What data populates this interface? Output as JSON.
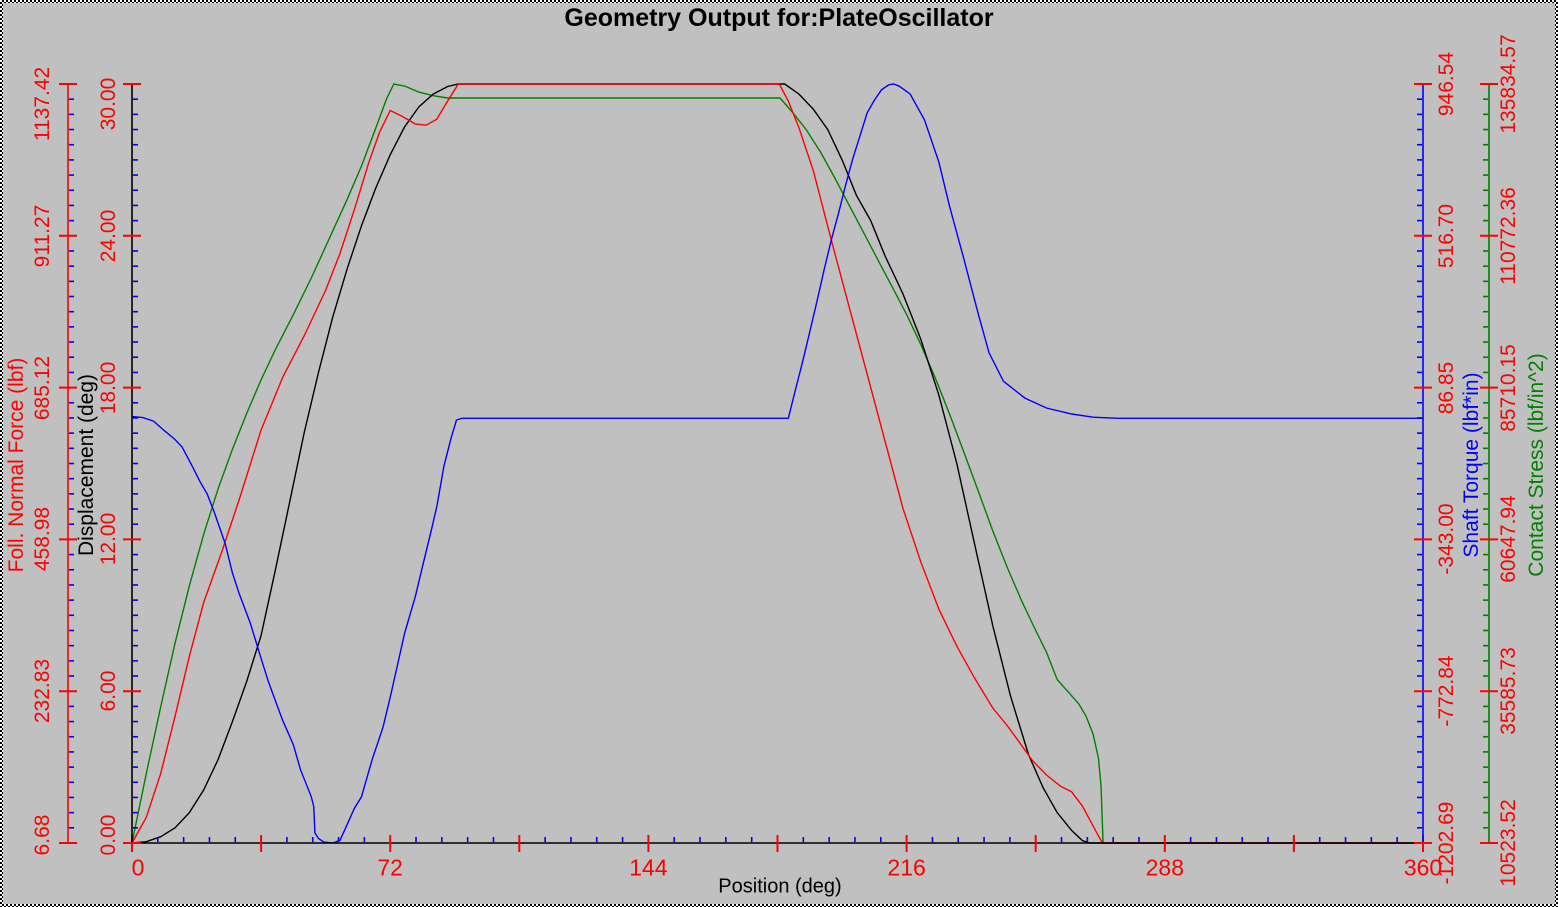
{
  "window": {
    "background_color": "#c0c0c0"
  },
  "chart_data": {
    "type": "line",
    "title": "Geometry Output for:PlateOscillator",
    "xlabel": "Position (deg)",
    "legend": "none",
    "grid": false,
    "x_axis": {
      "min": 0,
      "max": 360,
      "major_tick_step": 36,
      "minor_tick_step": 7.2,
      "labeled_ticks": [
        0,
        72,
        144,
        216,
        288,
        360
      ],
      "axis_color": "#000000",
      "major_tick_color": "#ff0000",
      "minor_tick_color": "#0000ff",
      "tick_label_color": "#ff0000"
    },
    "y_axes": [
      {
        "id": "force",
        "label": "Foll. Normal Force (lbf)",
        "color": "#ff0000",
        "side": "left",
        "min": 6.68,
        "max": 1137.42,
        "ticks": [
          6.68,
          232.83,
          458.98,
          685.12,
          911.27,
          1137.42
        ],
        "tick_labels": [
          "6.68",
          "232.83",
          "458.98",
          "685.12",
          "911.27",
          "1137.42"
        ],
        "tick_label_color": "#ff0000",
        "major_tick_color": "#ff0000",
        "minor_tick_color": "#0000ff"
      },
      {
        "id": "displacement",
        "label": "Displacement (deg)",
        "color": "#000000",
        "side": "left",
        "min": 0,
        "max": 30,
        "ticks": [
          0,
          6,
          12,
          18,
          24,
          30
        ],
        "tick_labels": [
          "0.00",
          "6.00",
          "12.00",
          "18.00",
          "24.00",
          "30.00"
        ],
        "tick_label_color": "#ff0000",
        "major_tick_color": "#ff0000",
        "minor_tick_color": "#0000ff"
      },
      {
        "id": "torque",
        "label": "Shaft Torque (lbf*in)",
        "color": "#0000ff",
        "side": "right",
        "min": -1202.69,
        "max": 946.54,
        "ticks": [
          -1202.69,
          -772.84,
          -343.0,
          86.85,
          516.7,
          946.54
        ],
        "tick_labels": [
          "-1202.69",
          "-772.84",
          "-343.00",
          "86.85",
          "516.70",
          "946.54"
        ],
        "tick_label_color": "#ff0000",
        "major_tick_color": "#ff0000",
        "minor_tick_color": "#0000ff"
      },
      {
        "id": "stress",
        "label": "Contact Stress (lbf/in^2)",
        "color": "#008000",
        "side": "right",
        "min": 10523.52,
        "max": 135834.57,
        "ticks": [
          10523.52,
          35585.73,
          60647.94,
          85710.15,
          110772.36,
          135834.57
        ],
        "tick_labels": [
          "10523.52",
          "35585.73",
          "60647.94",
          "85710.15",
          "110772.36",
          "135834.57"
        ],
        "tick_label_color": "#ff0000",
        "major_tick_color": "#ff0000",
        "minor_tick_color": "#008000"
      }
    ],
    "series": [
      {
        "name": "Contact Stress",
        "axis": "stress",
        "color": "#008000",
        "points": [
          [
            0,
            10524
          ],
          [
            4,
            22000
          ],
          [
            8,
            33000
          ],
          [
            12,
            43500
          ],
          [
            16,
            53000
          ],
          [
            20,
            61500
          ],
          [
            24,
            69000
          ],
          [
            28,
            75500
          ],
          [
            32,
            81500
          ],
          [
            36,
            87000
          ],
          [
            40,
            92000
          ],
          [
            45,
            97800
          ],
          [
            50,
            103800
          ],
          [
            55,
            110300
          ],
          [
            60,
            116800
          ],
          [
            64,
            122300
          ],
          [
            68,
            128600
          ],
          [
            71,
            133400
          ],
          [
            73,
            135835
          ],
          [
            76,
            135500
          ],
          [
            80,
            134500
          ],
          [
            84,
            133900
          ],
          [
            88,
            133530
          ],
          [
            180.7,
            133530
          ],
          [
            184,
            131300
          ],
          [
            188,
            128300
          ],
          [
            192,
            124600
          ],
          [
            196,
            120300
          ],
          [
            200,
            115800
          ],
          [
            204,
            111300
          ],
          [
            208,
            106800
          ],
          [
            212,
            102300
          ],
          [
            216,
            97800
          ],
          [
            220,
            92800
          ],
          [
            224,
            87300
          ],
          [
            228,
            81300
          ],
          [
            232,
            75000
          ],
          [
            236,
            68600
          ],
          [
            240,
            62100
          ],
          [
            244,
            56100
          ],
          [
            248,
            50600
          ],
          [
            252,
            45600
          ],
          [
            255,
            42000
          ],
          [
            258,
            37500
          ],
          [
            261,
            35500
          ],
          [
            264,
            33500
          ],
          [
            266,
            31500
          ],
          [
            268,
            28500
          ],
          [
            269.5,
            24500
          ],
          [
            270.2,
            20000
          ],
          [
            270.8,
            10524
          ],
          [
            360,
            10524
          ]
        ]
      },
      {
        "name": "Displacement",
        "axis": "displacement",
        "color": "#000000",
        "points": [
          [
            0,
            0
          ],
          [
            4,
            0.05
          ],
          [
            8,
            0.25
          ],
          [
            12,
            0.6
          ],
          [
            16,
            1.2
          ],
          [
            20,
            2.1
          ],
          [
            24,
            3.3
          ],
          [
            28,
            4.8
          ],
          [
            32,
            6.4
          ],
          [
            36,
            8.2
          ],
          [
            40,
            10.8
          ],
          [
            44,
            13.5
          ],
          [
            48,
            16.2
          ],
          [
            52,
            18.6
          ],
          [
            56,
            20.8
          ],
          [
            60,
            22.7
          ],
          [
            64,
            24.4
          ],
          [
            68,
            25.9
          ],
          [
            72,
            27.2
          ],
          [
            76,
            28.3
          ],
          [
            80,
            29.1
          ],
          [
            84,
            29.6
          ],
          [
            88,
            29.9
          ],
          [
            91,
            30
          ],
          [
            182,
            30
          ],
          [
            186,
            29.6
          ],
          [
            190,
            29.0
          ],
          [
            194,
            28.2
          ],
          [
            198,
            27.0
          ],
          [
            202,
            25.6
          ],
          [
            206,
            24.6
          ],
          [
            210,
            23.2
          ],
          [
            215,
            21.7
          ],
          [
            220,
            19.9
          ],
          [
            225,
            17.7
          ],
          [
            230,
            15.0
          ],
          [
            235,
            11.8
          ],
          [
            240,
            8.6
          ],
          [
            245,
            5.8
          ],
          [
            250,
            3.5
          ],
          [
            254,
            2.2
          ],
          [
            258,
            1.2
          ],
          [
            262,
            0.5
          ],
          [
            265,
            0.1
          ],
          [
            267,
            0
          ],
          [
            360,
            0
          ]
        ]
      },
      {
        "name": "Foll. Normal Force",
        "axis": "force",
        "color": "#ff0000",
        "points": [
          [
            0,
            6.68
          ],
          [
            4,
            45
          ],
          [
            8,
            110
          ],
          [
            12,
            195
          ],
          [
            16,
            285
          ],
          [
            20,
            365
          ],
          [
            25,
            440
          ],
          [
            30,
            520
          ],
          [
            36,
            622
          ],
          [
            42,
            700
          ],
          [
            48,
            762
          ],
          [
            54,
            830
          ],
          [
            58,
            885
          ],
          [
            62,
            950
          ],
          [
            66,
            1020
          ],
          [
            69,
            1065
          ],
          [
            72,
            1098
          ],
          [
            75,
            1090
          ],
          [
            79,
            1078
          ],
          [
            82,
            1076
          ],
          [
            85,
            1085
          ],
          [
            88,
            1112
          ],
          [
            91,
            1137.42
          ],
          [
            180.5,
            1137.42
          ],
          [
            183,
            1112
          ],
          [
            186,
            1072
          ],
          [
            190,
            1008
          ],
          [
            195,
            905
          ],
          [
            200,
            805
          ],
          [
            205,
            705
          ],
          [
            210,
            605
          ],
          [
            215,
            505
          ],
          [
            220,
            425
          ],
          [
            225,
            355
          ],
          [
            230,
            300
          ],
          [
            235,
            252
          ],
          [
            240,
            208
          ],
          [
            244,
            182
          ],
          [
            247,
            160
          ],
          [
            251,
            130
          ],
          [
            255,
            108
          ],
          [
            259,
            91
          ],
          [
            262,
            83
          ],
          [
            265,
            62
          ],
          [
            267,
            42
          ],
          [
            269,
            22
          ],
          [
            270.6,
            6.68
          ],
          [
            360,
            6.68
          ]
        ]
      },
      {
        "name": "Shaft Torque",
        "axis": "torque",
        "color": "#0000ff",
        "points": [
          [
            0,
            5
          ],
          [
            3,
            2
          ],
          [
            6,
            -8
          ],
          [
            9,
            -35
          ],
          [
            12,
            -60
          ],
          [
            14,
            -82
          ],
          [
            17,
            -140
          ],
          [
            19,
            -180
          ],
          [
            21,
            -215
          ],
          [
            23,
            -268
          ],
          [
            26,
            -355
          ],
          [
            28,
            -438
          ],
          [
            30,
            -500
          ],
          [
            33,
            -580
          ],
          [
            36,
            -680
          ],
          [
            38,
            -745
          ],
          [
            40,
            -800
          ],
          [
            42,
            -855
          ],
          [
            45,
            -925
          ],
          [
            47,
            -995
          ],
          [
            50,
            -1072
          ],
          [
            50.7,
            -1100
          ],
          [
            51,
            -1174
          ],
          [
            52,
            -1190
          ],
          [
            53.5,
            -1200
          ],
          [
            56,
            -1202.69
          ],
          [
            58,
            -1195
          ],
          [
            60,
            -1150
          ],
          [
            62,
            -1105
          ],
          [
            64,
            -1072
          ],
          [
            67,
            -965
          ],
          [
            70,
            -875
          ],
          [
            72,
            -790
          ],
          [
            74,
            -700
          ],
          [
            76,
            -610
          ],
          [
            79,
            -505
          ],
          [
            81,
            -420
          ],
          [
            83.5,
            -316
          ],
          [
            85,
            -250
          ],
          [
            87,
            -135
          ],
          [
            89,
            -55
          ],
          [
            90.5,
            -5
          ],
          [
            92,
            0
          ],
          [
            183,
            0
          ],
          [
            185,
            80
          ],
          [
            187,
            160
          ],
          [
            189,
            245
          ],
          [
            191,
            330
          ],
          [
            193,
            420
          ],
          [
            195,
            505
          ],
          [
            197,
            580
          ],
          [
            199,
            660
          ],
          [
            201,
            735
          ],
          [
            203,
            800
          ],
          [
            205,
            865
          ],
          [
            207,
            900
          ],
          [
            209,
            930
          ],
          [
            211,
            944
          ],
          [
            212.4,
            946.54
          ],
          [
            214,
            940
          ],
          [
            217,
            918
          ],
          [
            221,
            845
          ],
          [
            225,
            725
          ],
          [
            228,
            600
          ],
          [
            232,
            450
          ],
          [
            236,
            295
          ],
          [
            239,
            185
          ],
          [
            243,
            105
          ],
          [
            249,
            57
          ],
          [
            255,
            29
          ],
          [
            262,
            12
          ],
          [
            268,
            3
          ],
          [
            275,
            0
          ],
          [
            360,
            0
          ]
        ]
      }
    ]
  }
}
